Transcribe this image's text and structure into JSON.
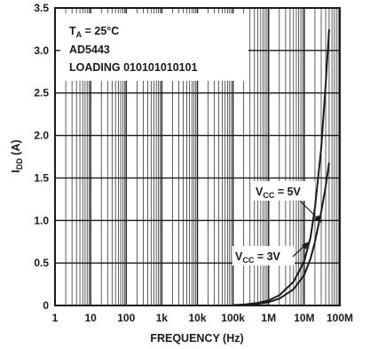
{
  "chart_data": {
    "type": "line",
    "x_scale": "log",
    "xlabel": "FREQUENCY (Hz)",
    "ylabel": "I",
    "ylabel_sub": "DD",
    "ylabel_unit": " (A)",
    "xlim": [
      1,
      100000000
    ],
    "ylim": [
      0,
      3.5
    ],
    "grid": true,
    "x_ticks": [
      {
        "value": 1,
        "label": "1"
      },
      {
        "value": 10,
        "label": "10"
      },
      {
        "value": 100,
        "label": "100"
      },
      {
        "value": 1000,
        "label": "1k"
      },
      {
        "value": 10000,
        "label": "10k"
      },
      {
        "value": 100000,
        "label": "100k"
      },
      {
        "value": 1000000,
        "label": "1M"
      },
      {
        "value": 10000000,
        "label": "10M"
      },
      {
        "value": 100000000,
        "label": "100M"
      }
    ],
    "y_ticks": [
      {
        "value": 0,
        "label": "0"
      },
      {
        "value": 0.5,
        "label": "0.5"
      },
      {
        "value": 1.0,
        "label": "1.0"
      },
      {
        "value": 1.5,
        "label": "1.5"
      },
      {
        "value": 2.0,
        "label": "2.0"
      },
      {
        "value": 2.5,
        "label": "2.5"
      },
      {
        "value": 3.0,
        "label": "3.0"
      },
      {
        "value": 3.5,
        "label": "3.5"
      }
    ],
    "conditions": {
      "line1_main": "T",
      "line1_sub": "A",
      "line1_rest": " = 25°C",
      "line2": "AD5443",
      "line3": "LOADING 010101010101"
    },
    "series": [
      {
        "name_main": "V",
        "name_sub": "CC",
        "name_rest": " = 5V",
        "x": [
          100000,
          200000,
          500000,
          1000000,
          2000000,
          5000000,
          10000000,
          15000000,
          20000000,
          30000000,
          40000000,
          50000000
        ],
        "y": [
          0.005,
          0.01,
          0.03,
          0.06,
          0.12,
          0.28,
          0.52,
          0.8,
          1.15,
          1.85,
          2.6,
          3.25
        ]
      },
      {
        "name_main": "V",
        "name_sub": "CC",
        "name_rest": " = 3V",
        "x": [
          100000,
          200000,
          500000,
          1000000,
          2000000,
          5000000,
          10000000,
          15000000,
          20000000,
          30000000,
          40000000,
          50000000
        ],
        "y": [
          0.004,
          0.008,
          0.02,
          0.04,
          0.08,
          0.19,
          0.36,
          0.55,
          0.75,
          1.1,
          1.4,
          1.68
        ]
      }
    ]
  }
}
